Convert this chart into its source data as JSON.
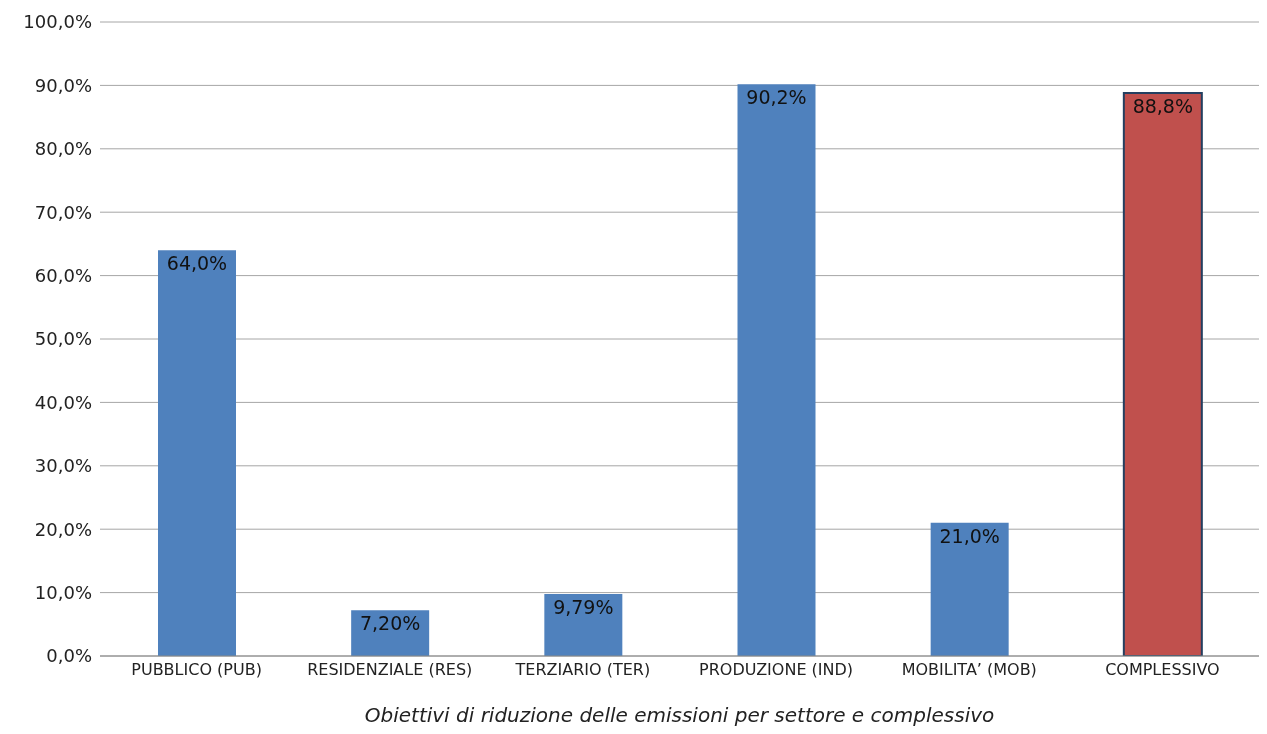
{
  "chart_data": {
    "type": "bar",
    "xlabel": "Obiettivi di riduzione delle emissioni per settore e complessivo",
    "categories": [
      "PUBBLICO (PUB)",
      "RESIDENZIALE (RES)",
      "TERZIARIO (TER)",
      "PRODUZIONE (IND)",
      "MOBILITA’ (MOB)",
      "COMPLESSIVO"
    ],
    "values": [
      64.0,
      7.2,
      9.79,
      90.2,
      21.0,
      88.8
    ],
    "colors": [
      "#4f81bd",
      "#4f81bd",
      "#4f81bd",
      "#4f81bd",
      "#4f81bd",
      "#c0504d"
    ],
    "value_labels": [
      "64,0%",
      "7,20%",
      "9,79%",
      "90,2%",
      "21,0%",
      "88,8%"
    ],
    "ylim": [
      0,
      100
    ],
    "yticks": [
      {
        "value": 0,
        "label": "0,0%"
      },
      {
        "value": 10,
        "label": "10,0%"
      },
      {
        "value": 20,
        "label": "20,0%"
      },
      {
        "value": 30,
        "label": "30,0%"
      },
      {
        "value": 40,
        "label": "40,0%"
      },
      {
        "value": 50,
        "label": "50,0%"
      },
      {
        "value": 60,
        "label": "60,0%"
      },
      {
        "value": 70,
        "label": "70,0%"
      },
      {
        "value": 80,
        "label": "80,0%"
      },
      {
        "value": 90,
        "label": "90,0%"
      },
      {
        "value": 100,
        "label": "100,0%"
      }
    ],
    "grid": "y"
  }
}
